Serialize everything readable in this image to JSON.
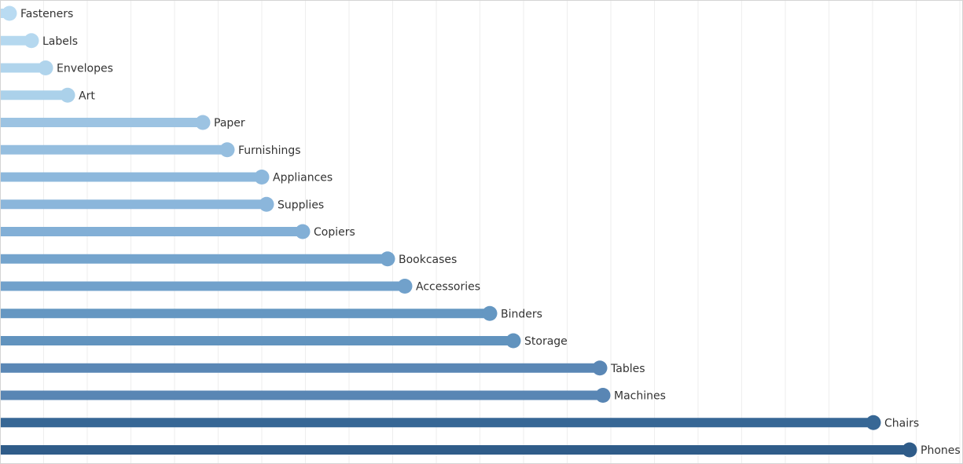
{
  "chart_data": {
    "type": "bar",
    "style": "lollipop",
    "orientation": "horizontal",
    "title": "",
    "xlabel": "",
    "ylabel": "",
    "grid": "vertical",
    "xlim": [
      0,
      1225
    ],
    "categories": [
      "Fasteners",
      "Labels",
      "Envelopes",
      "Art",
      "Paper",
      "Furnishings",
      "Appliances",
      "Supplies",
      "Copiers",
      "Bookcases",
      "Accessories",
      "Binders",
      "Storage",
      "Tables",
      "Machines",
      "Chairs",
      "Phones"
    ],
    "values": [
      12,
      40,
      58,
      86,
      258,
      289,
      333,
      339,
      385,
      493,
      515,
      623,
      653,
      763,
      767,
      1111,
      1157
    ],
    "colors": [
      "#b9dbf2",
      "#b5d8ef",
      "#b0d4ec",
      "#abd1ea",
      "#9cc3e2",
      "#95bedf",
      "#8db8dc",
      "#8bb6db",
      "#82afd6",
      "#74a4cd",
      "#71a1cb",
      "#6597c2",
      "#6193be",
      "#5a87b5",
      "#5986b4",
      "#376795",
      "#2f5c89"
    ]
  }
}
